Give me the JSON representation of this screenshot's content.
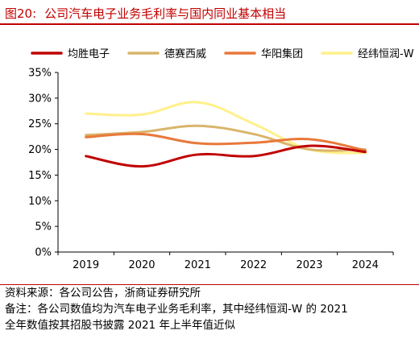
{
  "figure": {
    "label": "图20:",
    "title": "公司汽车电子业务毛利率与国内同业基本相当"
  },
  "colors": {
    "accent": "#c00000",
    "series": [
      "#c00000",
      "#d9b56b",
      "#e8793b",
      "#fff08a"
    ]
  },
  "chart_data": {
    "type": "line",
    "x": [
      "2019",
      "2020",
      "2021",
      "2022",
      "2023",
      "2024"
    ],
    "y_ticks": [
      "0%",
      "5%",
      "10%",
      "15%",
      "20%",
      "25%",
      "30%",
      "35%"
    ],
    "ylim": [
      0,
      35
    ],
    "grid": false,
    "legend": "top",
    "series": [
      {
        "name": "均胜电子",
        "values": [
          18.7,
          16.7,
          19.0,
          18.7,
          20.7,
          19.5
        ]
      },
      {
        "name": "德赛西威",
        "values": [
          22.8,
          23.4,
          24.6,
          23.0,
          20.0,
          20.0
        ]
      },
      {
        "name": "华阳集团",
        "values": [
          22.4,
          23.0,
          21.2,
          21.3,
          22.0,
          19.8
        ]
      },
      {
        "name": "经纬恒润-W",
        "values": [
          27.0,
          26.8,
          29.2,
          25.0,
          20.0,
          19.3
        ]
      }
    ]
  },
  "notes": {
    "source": "资料来源：各公司公告，浙商证券研究所",
    "remark_line1": "备注：各公司数值均为汽车电子业务毛利率，其中经纬恒润-W 的 2021",
    "remark_line2": "全年数值按其招股书披露 2021 年上半年值近似"
  }
}
